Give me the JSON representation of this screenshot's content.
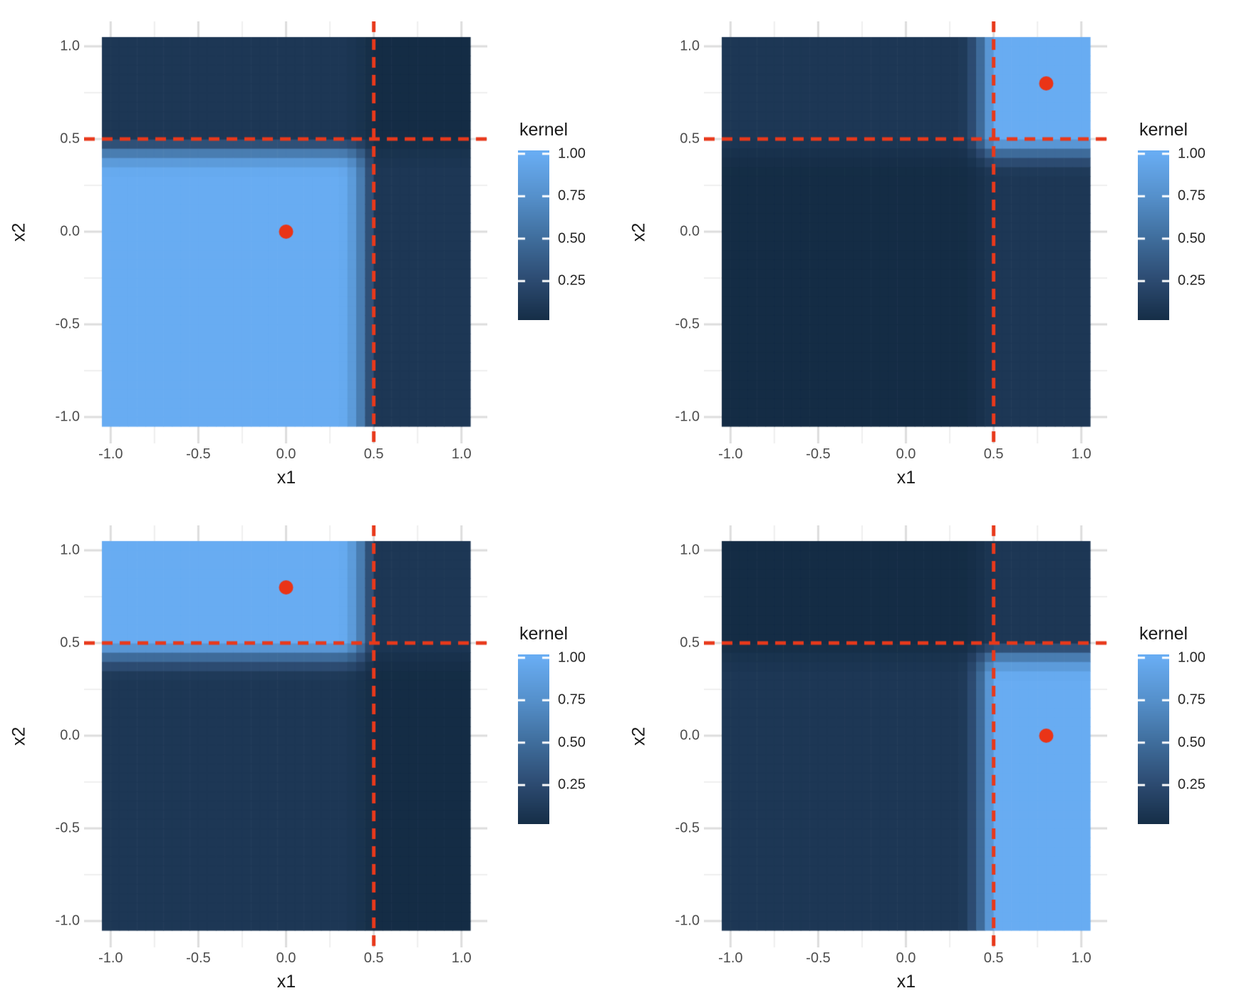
{
  "chart_data": {
    "type": "heatmap",
    "layout": "2x2 grid of kernel heatmaps (ggplot-style), legend to the right of each panel",
    "x_range": [
      -1.05,
      1.05
    ],
    "y_range": [
      -1.05,
      1.05
    ],
    "axis": {
      "x_tick_values": [
        -1.0,
        -0.5,
        0.0,
        0.5,
        1.0
      ],
      "x_tick_labels": [
        "-1.0",
        "-0.5",
        "0.0",
        "0.5",
        "1.0"
      ],
      "y_tick_values": [
        1.0,
        0.5,
        0.0,
        -0.5,
        -1.0
      ],
      "y_tick_labels": [
        "1.0",
        "0.5",
        "0.0",
        "-0.5",
        "-1.0"
      ],
      "minor_tick_values": [
        -0.75,
        -0.25,
        0.25,
        0.75
      ],
      "grid": "stubs visible only in panel expansion margin outside tile block"
    },
    "legend": {
      "title": "kernel",
      "tick_values": [
        1.0,
        0.75,
        0.5,
        0.25
      ],
      "tick_labels": [
        "1.00",
        "0.75",
        "0.50",
        "0.25"
      ],
      "bar_value_top": 1.02,
      "bar_value_bottom": 0.02,
      "position": "right, vertically centered"
    },
    "split_lines": {
      "x1": 0.5,
      "x2": 0.5,
      "style": "dashed",
      "color": "#E8391B"
    },
    "kernel_model": {
      "description": "product of per-coordinate soft split memberships at split 0.5; smooth transition band between 0.3 and 0.5, flat elsewhere",
      "transition_start": 0.3,
      "transition_end": 0.5,
      "floor": 0.1,
      "exponent": 1.8,
      "tile_size": 0.05
    },
    "panels": [
      {
        "id": "top-left",
        "xlabel": "x1",
        "ylabel": "x2",
        "ref": {
          "x1": 0.0,
          "x2": 0.0
        },
        "core_condition": "x1 < 0.5 and x2 < 0.5",
        "core_value": 1.0,
        "single_mismatch_value": 0.1,
        "double_mismatch_value": 0.01
      },
      {
        "id": "top-right",
        "xlabel": "x1",
        "ylabel": "x2",
        "ref": {
          "x1": 0.8,
          "x2": 0.8
        },
        "core_condition": "x1 > 0.5 and x2 > 0.5",
        "core_value": 1.0,
        "single_mismatch_value": 0.1,
        "double_mismatch_value": 0.01
      },
      {
        "id": "bottom-left",
        "xlabel": "x1",
        "ylabel": "x2",
        "ref": {
          "x1": 0.0,
          "x2": 0.8
        },
        "core_condition": "x1 < 0.5 and x2 > 0.5",
        "core_value": 1.0,
        "single_mismatch_value": 0.1,
        "double_mismatch_value": 0.01
      },
      {
        "id": "bottom-right",
        "xlabel": "x1",
        "ylabel": "x2",
        "ref": {
          "x1": 0.8,
          "x2": 0.0
        },
        "core_condition": "x1 > 0.5 and x2 < 0.5",
        "core_value": 1.0,
        "single_mismatch_value": 0.1,
        "double_mismatch_value": 0.01
      }
    ],
    "colors": {
      "fill_low": "#132B43",
      "fill_q25": "#2C4A70",
      "fill_mid": "#3F6D9C",
      "fill_q75": "#5590CB",
      "fill_high": "#68ACF2",
      "dashed_line": "#E8391B",
      "point": "#EA3417",
      "grid_major": "#DDDDDD",
      "grid_minor": "#EFEFEF",
      "tick_label": "#4D4D4D",
      "axis_title": "#1A1A1A",
      "background": "#FFFFFF"
    },
    "points": [
      {
        "panel": "top-left",
        "x1": 0.0,
        "x2": 0.0
      },
      {
        "panel": "top-right",
        "x1": 0.8,
        "x2": 0.8
      },
      {
        "panel": "bottom-left",
        "x1": 0.0,
        "x2": 0.8
      },
      {
        "panel": "bottom-right",
        "x1": 0.8,
        "x2": 0.0
      }
    ]
  }
}
